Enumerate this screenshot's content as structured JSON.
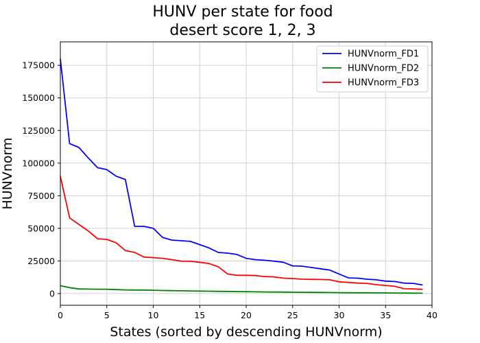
{
  "chart_data": {
    "type": "line",
    "title": [
      "HUNV per state for food",
      "desert score 1, 2, 3"
    ],
    "xlabel": "States (sorted by descending HUNVnorm)",
    "ylabel": "HUNVnorm",
    "xlim": [
      0,
      40
    ],
    "ylim": [
      -9000,
      193000
    ],
    "xticks": [
      0,
      5,
      10,
      15,
      20,
      25,
      30,
      35,
      40
    ],
    "yticks": [
      0,
      25000,
      50000,
      75000,
      100000,
      125000,
      150000,
      175000
    ],
    "grid": true,
    "legend_position": "top-right",
    "x": [
      0,
      1,
      2,
      3,
      4,
      5,
      6,
      7,
      8,
      9,
      10,
      11,
      12,
      13,
      14,
      15,
      16,
      17,
      18,
      19,
      20,
      21,
      22,
      23,
      24,
      25,
      26,
      27,
      28,
      29,
      30,
      31,
      32,
      33,
      34,
      35,
      36,
      37,
      38,
      39
    ],
    "series": [
      {
        "name": "HUNVnorm_FD1",
        "color": "#0000ff",
        "values": [
          180000,
          115000,
          112000,
          104000,
          96500,
          95000,
          90000,
          87500,
          51500,
          51500,
          50000,
          43000,
          41000,
          40500,
          40000,
          37500,
          35000,
          31500,
          31000,
          30000,
          27000,
          26000,
          25500,
          24800,
          24000,
          21200,
          21000,
          20000,
          19000,
          18000,
          15000,
          12000,
          11800,
          11000,
          10500,
          9500,
          9200,
          8000,
          7800,
          6500
        ]
      },
      {
        "name": "HUNVnorm_FD2",
        "color": "#008000",
        "values": [
          6000,
          4500,
          3500,
          3400,
          3300,
          3300,
          3000,
          2800,
          2700,
          2600,
          2500,
          2300,
          2200,
          2100,
          2000,
          1900,
          1800,
          1700,
          1600,
          1500,
          1400,
          1300,
          1200,
          1150,
          1100,
          1000,
          950,
          900,
          850,
          800,
          700,
          650,
          600,
          550,
          500,
          450,
          400,
          350,
          300,
          250
        ]
      },
      {
        "name": "HUNVnorm_FD3",
        "color": "#ff0000",
        "values": [
          90000,
          58000,
          53000,
          48000,
          42000,
          41500,
          39000,
          33000,
          31500,
          28000,
          27500,
          27000,
          26000,
          24800,
          24700,
          24000,
          23000,
          20500,
          15000,
          14000,
          14000,
          13800,
          13000,
          12800,
          11800,
          11500,
          11000,
          10900,
          10800,
          10500,
          9000,
          8500,
          8000,
          7800,
          6800,
          6200,
          5500,
          3700,
          3500,
          3200
        ]
      }
    ]
  }
}
